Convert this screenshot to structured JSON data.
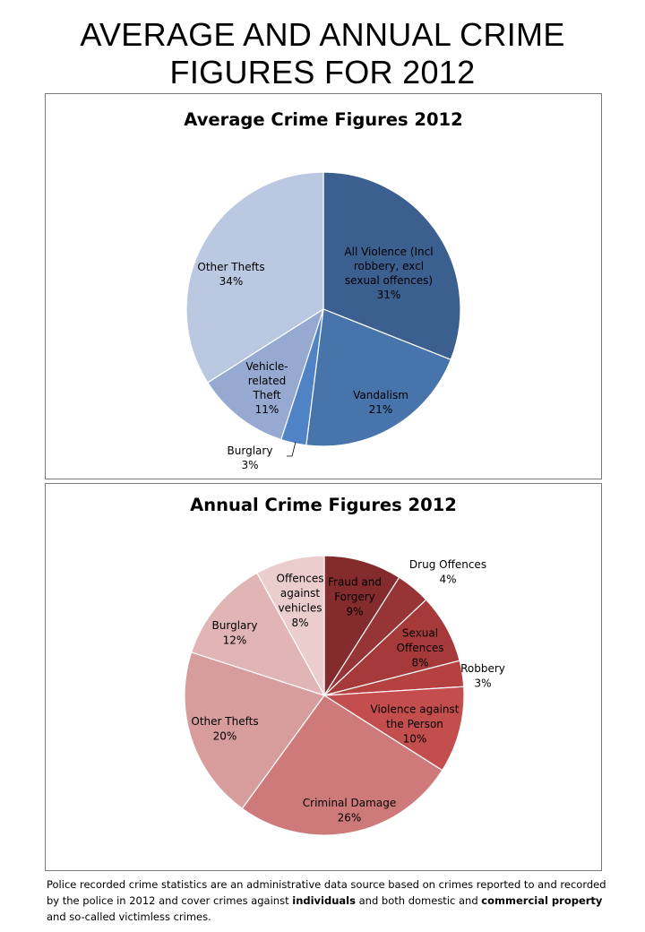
{
  "page": {
    "title_line1": "AVERAGE AND ANNUAL CRIME",
    "title_line2": "FIGURES FOR 2012"
  },
  "chart_data": [
    {
      "type": "pie",
      "title": "Average Crime Figures 2012",
      "slices": [
        {
          "label": "All Violence (Incl robbery, excl sexual offences)",
          "label_lines": [
            "All Violence (Incl",
            "robbery, excl",
            "sexual offences)"
          ],
          "value": 31,
          "value_label": "31%",
          "color": "#3b5f8e"
        },
        {
          "label": "Vandalism",
          "label_lines": [
            "Vandalism"
          ],
          "value": 21,
          "value_label": "21%",
          "color": "#4674ab"
        },
        {
          "label": "Burglary",
          "label_lines": [
            "Burglary"
          ],
          "value": 3,
          "value_label": "3%",
          "color": "#4f83c6"
        },
        {
          "label": "Vehicle-related Theft",
          "label_lines": [
            "Vehicle-",
            "related",
            "Theft"
          ],
          "value": 11,
          "value_label": "11%",
          "color": "#95a9d1"
        },
        {
          "label": "Other Thefts",
          "label_lines": [
            "Other Thefts"
          ],
          "value": 34,
          "value_label": "34%",
          "color": "#bac9e1"
        }
      ]
    },
    {
      "type": "pie",
      "title": "Annual Crime Figures 2012",
      "slices": [
        {
          "label": "Fraud and Forgery",
          "label_lines": [
            "Fraud and",
            "Forgery"
          ],
          "value": 9,
          "value_label": "9%",
          "color": "#832b2d"
        },
        {
          "label": "Drug Offences",
          "label_lines": [
            "Drug Offences"
          ],
          "value": 4,
          "value_label": "4%",
          "color": "#973436"
        },
        {
          "label": "Sexual Offences",
          "label_lines": [
            "Sexual",
            "Offences"
          ],
          "value": 8,
          "value_label": "8%",
          "color": "#a63a3b"
        },
        {
          "label": "Robbery",
          "label_lines": [
            "Robbery"
          ],
          "value": 3,
          "value_label": "3%",
          "color": "#b54141"
        },
        {
          "label": "Violence against the Person",
          "label_lines": [
            "Violence against",
            "the Person"
          ],
          "value": 10,
          "value_label": "10%",
          "color": "#c44d4e"
        },
        {
          "label": "Criminal Damage",
          "label_lines": [
            "Criminal Damage"
          ],
          "value": 26,
          "value_label": "26%",
          "color": "#ce7a7b"
        },
        {
          "label": "Other Thefts",
          "label_lines": [
            "Other Thefts"
          ],
          "value": 20,
          "value_label": "20%",
          "color": "#d79c9c"
        },
        {
          "label": "Burglary",
          "label_lines": [
            "Burglary"
          ],
          "value": 12,
          "value_label": "12%",
          "color": "#e1b4b5"
        },
        {
          "label": "Offences against vehicles",
          "label_lines": [
            "Offences",
            "against",
            "vehicles"
          ],
          "value": 8,
          "value_label": "8%",
          "color": "#ebcdce"
        }
      ]
    }
  ],
  "footnote": {
    "part1": "Police recorded crime statistics are an administrative data source based on crimes reported to and recorded by the police in 2012  and cover crimes against ",
    "bold1": "individuals",
    "part2": " and both domestic and ",
    "bold2": "commercial property",
    "part3": " and so-called victimless crimes."
  }
}
